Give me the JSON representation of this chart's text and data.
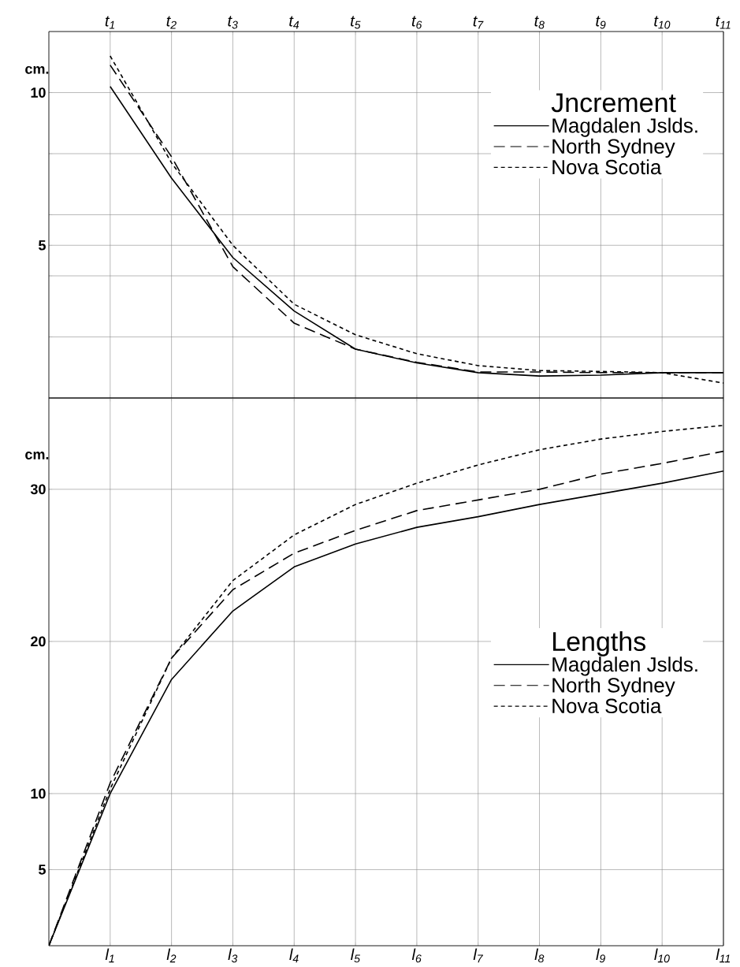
{
  "chart_data": [
    {
      "type": "line",
      "ylabel": "cm.",
      "legend_title": "Jncrement",
      "legend": "top right",
      "grid": true,
      "x": [
        1,
        2,
        3,
        4,
        5,
        6,
        7,
        8,
        9,
        10,
        11
      ],
      "xlim": [
        0,
        11
      ],
      "xticks": [
        {
          "value": 1,
          "label": "t$_{1}$"
        },
        {
          "value": 2,
          "label": "t$_{2}$"
        },
        {
          "value": 3,
          "label": "t$_{3}$"
        },
        {
          "value": 4,
          "label": "t$_{4}$"
        },
        {
          "value": 5,
          "label": "t$_{5}$"
        },
        {
          "value": 6,
          "label": "t$_{6}$"
        },
        {
          "value": 7,
          "label": "t$_{7}$"
        },
        {
          "value": 8,
          "label": "t$_{8}$"
        },
        {
          "value": 9,
          "label": "t$_{9}$"
        },
        {
          "value": 10,
          "label": "t$_{10}$"
        },
        {
          "value": 11,
          "label": "t$_{11}$"
        }
      ],
      "ylim": [
        0,
        12
      ],
      "yticks": [
        {
          "value": 2,
          "label": null
        },
        {
          "value": 4,
          "label": null
        },
        5,
        {
          "value": 6,
          "label": null
        },
        {
          "value": 8,
          "label": null
        },
        10
      ],
      "series": [
        {
          "name": "Magdalen Jslds.",
          "color": "#000000",
          "line_style": "solid",
          "values": [
            10.2,
            7.2,
            4.6,
            2.85,
            1.6,
            1.15,
            0.83,
            0.72,
            0.75,
            0.83,
            0.83
          ]
        },
        {
          "name": "North Sydney",
          "color": "#000000",
          "line_style": "dashed",
          "values": [
            10.9,
            7.9,
            4.3,
            2.45,
            1.6,
            1.17,
            0.85,
            0.85,
            0.83,
            0.83,
            0.83
          ]
        },
        {
          "name": "Nova Scotia",
          "color": "#000000",
          "line_style": "dotted",
          "values": [
            11.2,
            7.7,
            5.0,
            3.07,
            2.07,
            1.45,
            1.06,
            0.9,
            0.87,
            0.83,
            0.49
          ]
        }
      ]
    },
    {
      "type": "line",
      "ylabel": "cm.",
      "legend_title": "Lengths",
      "legend": "right",
      "grid": true,
      "x": [
        0,
        1,
        2,
        3,
        4,
        5,
        6,
        7,
        8,
        9,
        10,
        11
      ],
      "xlim": [
        0,
        11
      ],
      "xticks": [
        {
          "value": 1,
          "label": "l$_{1}$"
        },
        {
          "value": 2,
          "label": "l$_{2}$"
        },
        {
          "value": 3,
          "label": "l$_{3}$"
        },
        {
          "value": 4,
          "label": "l$_{4}$"
        },
        {
          "value": 5,
          "label": "l$_{5}$"
        },
        {
          "value": 6,
          "label": "l$_{6}$"
        },
        {
          "value": 7,
          "label": "l$_{7}$"
        },
        {
          "value": 8,
          "label": "l$_{8}$"
        },
        {
          "value": 9,
          "label": "l$_{9}$"
        },
        {
          "value": 10,
          "label": "l$_{10}$"
        },
        {
          "value": 11,
          "label": "l$_{11}$"
        }
      ],
      "ylim": [
        0,
        36
      ],
      "yticks": [
        5,
        10,
        20,
        30
      ],
      "series": [
        {
          "name": "Magdalen Jslds.",
          "color": "#000000",
          "line_style": "solid",
          "values": [
            0,
            10.0,
            17.5,
            22.0,
            24.9,
            26.4,
            27.5,
            28.2,
            29.0,
            29.7,
            30.4,
            31.2
          ]
        },
        {
          "name": "North Sydney",
          "color": "#000000",
          "line_style": "dashed",
          "values": [
            0,
            10.7,
            18.9,
            23.4,
            25.8,
            27.3,
            28.6,
            29.3,
            30.0,
            31.0,
            31.7,
            32.5
          ]
        },
        {
          "name": "Nova Scotia",
          "color": "#000000",
          "line_style": "dotted",
          "values": [
            0,
            10.3,
            18.9,
            24.0,
            27.0,
            29.0,
            30.4,
            31.6,
            32.6,
            33.3,
            33.8,
            34.2
          ]
        }
      ]
    }
  ]
}
